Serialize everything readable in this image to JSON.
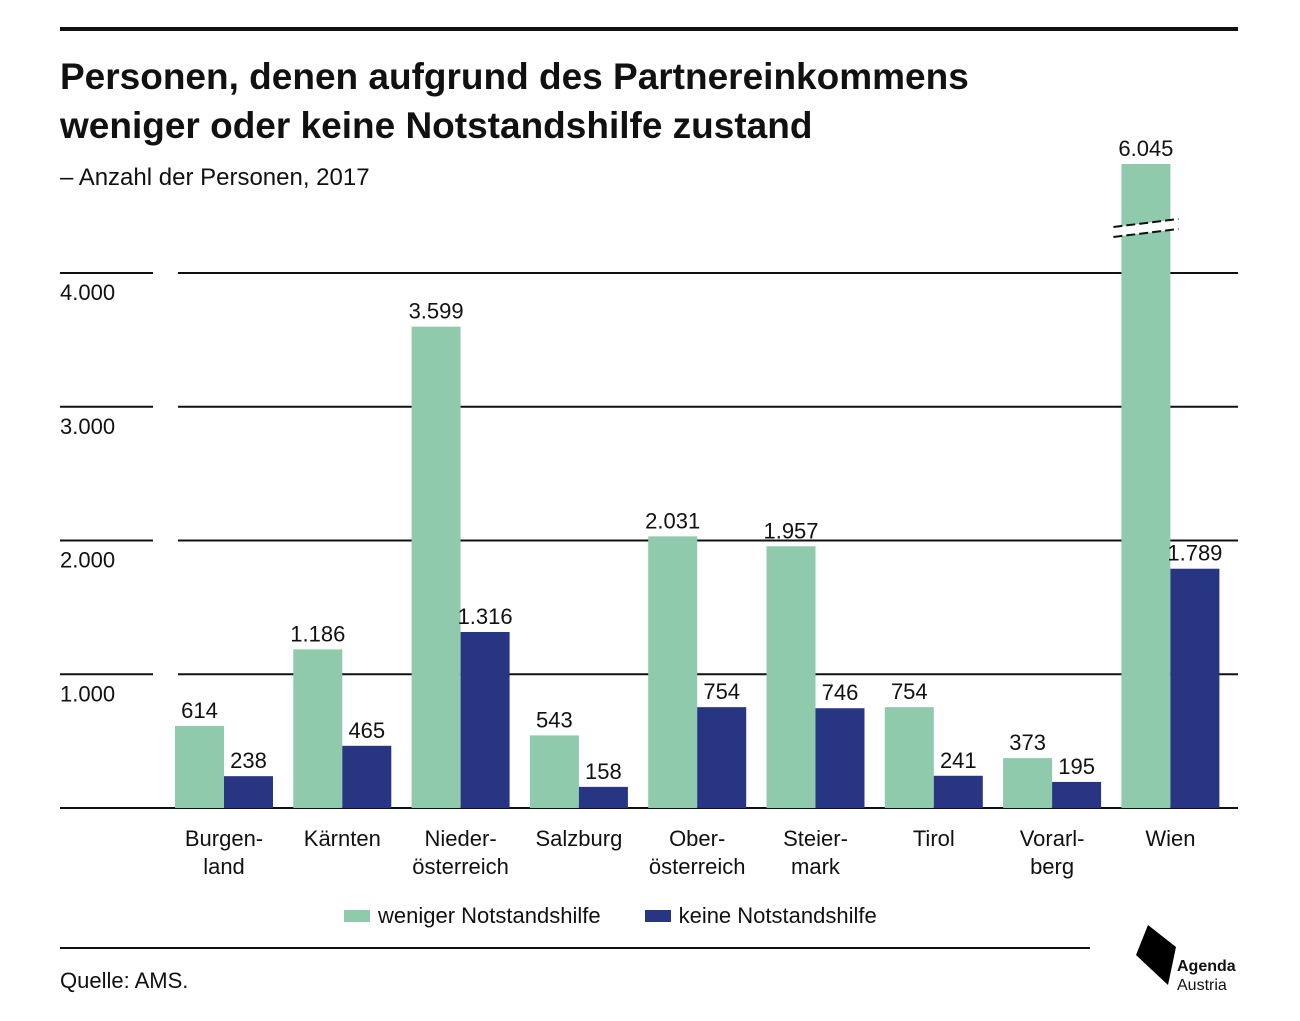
{
  "header": {
    "title_line1": "Personen, denen aufgrund des Partnereinkommens",
    "title_line2": "weniger oder keine Notstandshilfe zustand",
    "subtitle": "– Anzahl der Personen, 2017"
  },
  "colors": {
    "weniger": "#8fcaad",
    "keine": "#283583",
    "gridline": "#111111"
  },
  "chart_data": {
    "type": "bar",
    "categories": [
      [
        "Burgen-",
        "land"
      ],
      [
        "Kärnten"
      ],
      [
        "Nieder-",
        "österreich"
      ],
      [
        "Salzburg"
      ],
      [
        "Ober-",
        "österreich"
      ],
      [
        "Steier-",
        "mark"
      ],
      [
        "Tirol"
      ],
      [
        "Vorarl-",
        "berg"
      ],
      [
        "Wien"
      ]
    ],
    "series": [
      {
        "name": "weniger Notstandshilfe",
        "values": [
          614,
          1186,
          3599,
          543,
          2031,
          1957,
          754,
          373,
          6045
        ],
        "labels": [
          "614",
          "1.186",
          "3.599",
          "543",
          "2.031",
          "1.957",
          "754",
          "373",
          "6.045"
        ]
      },
      {
        "name": "keine Notstandshilfe",
        "values": [
          238,
          465,
          1316,
          158,
          754,
          746,
          241,
          195,
          1789
        ],
        "labels": [
          "238",
          "465",
          "1.316",
          "158",
          "754",
          "746",
          "241",
          "195",
          "1.789"
        ]
      }
    ],
    "yticks": [
      1000,
      2000,
      3000,
      4000
    ],
    "ytick_labels": [
      "1.000",
      "2.000",
      "3.000",
      "4.000"
    ],
    "ylim": [
      0,
      4000
    ],
    "axis_break": {
      "category": "Wien",
      "series": "weniger Notstandshilfe"
    },
    "legend": "bottom",
    "grid": true
  },
  "footer": {
    "source": "Quelle: AMS.",
    "logo_line1": "Agenda",
    "logo_line2": "Austria"
  }
}
